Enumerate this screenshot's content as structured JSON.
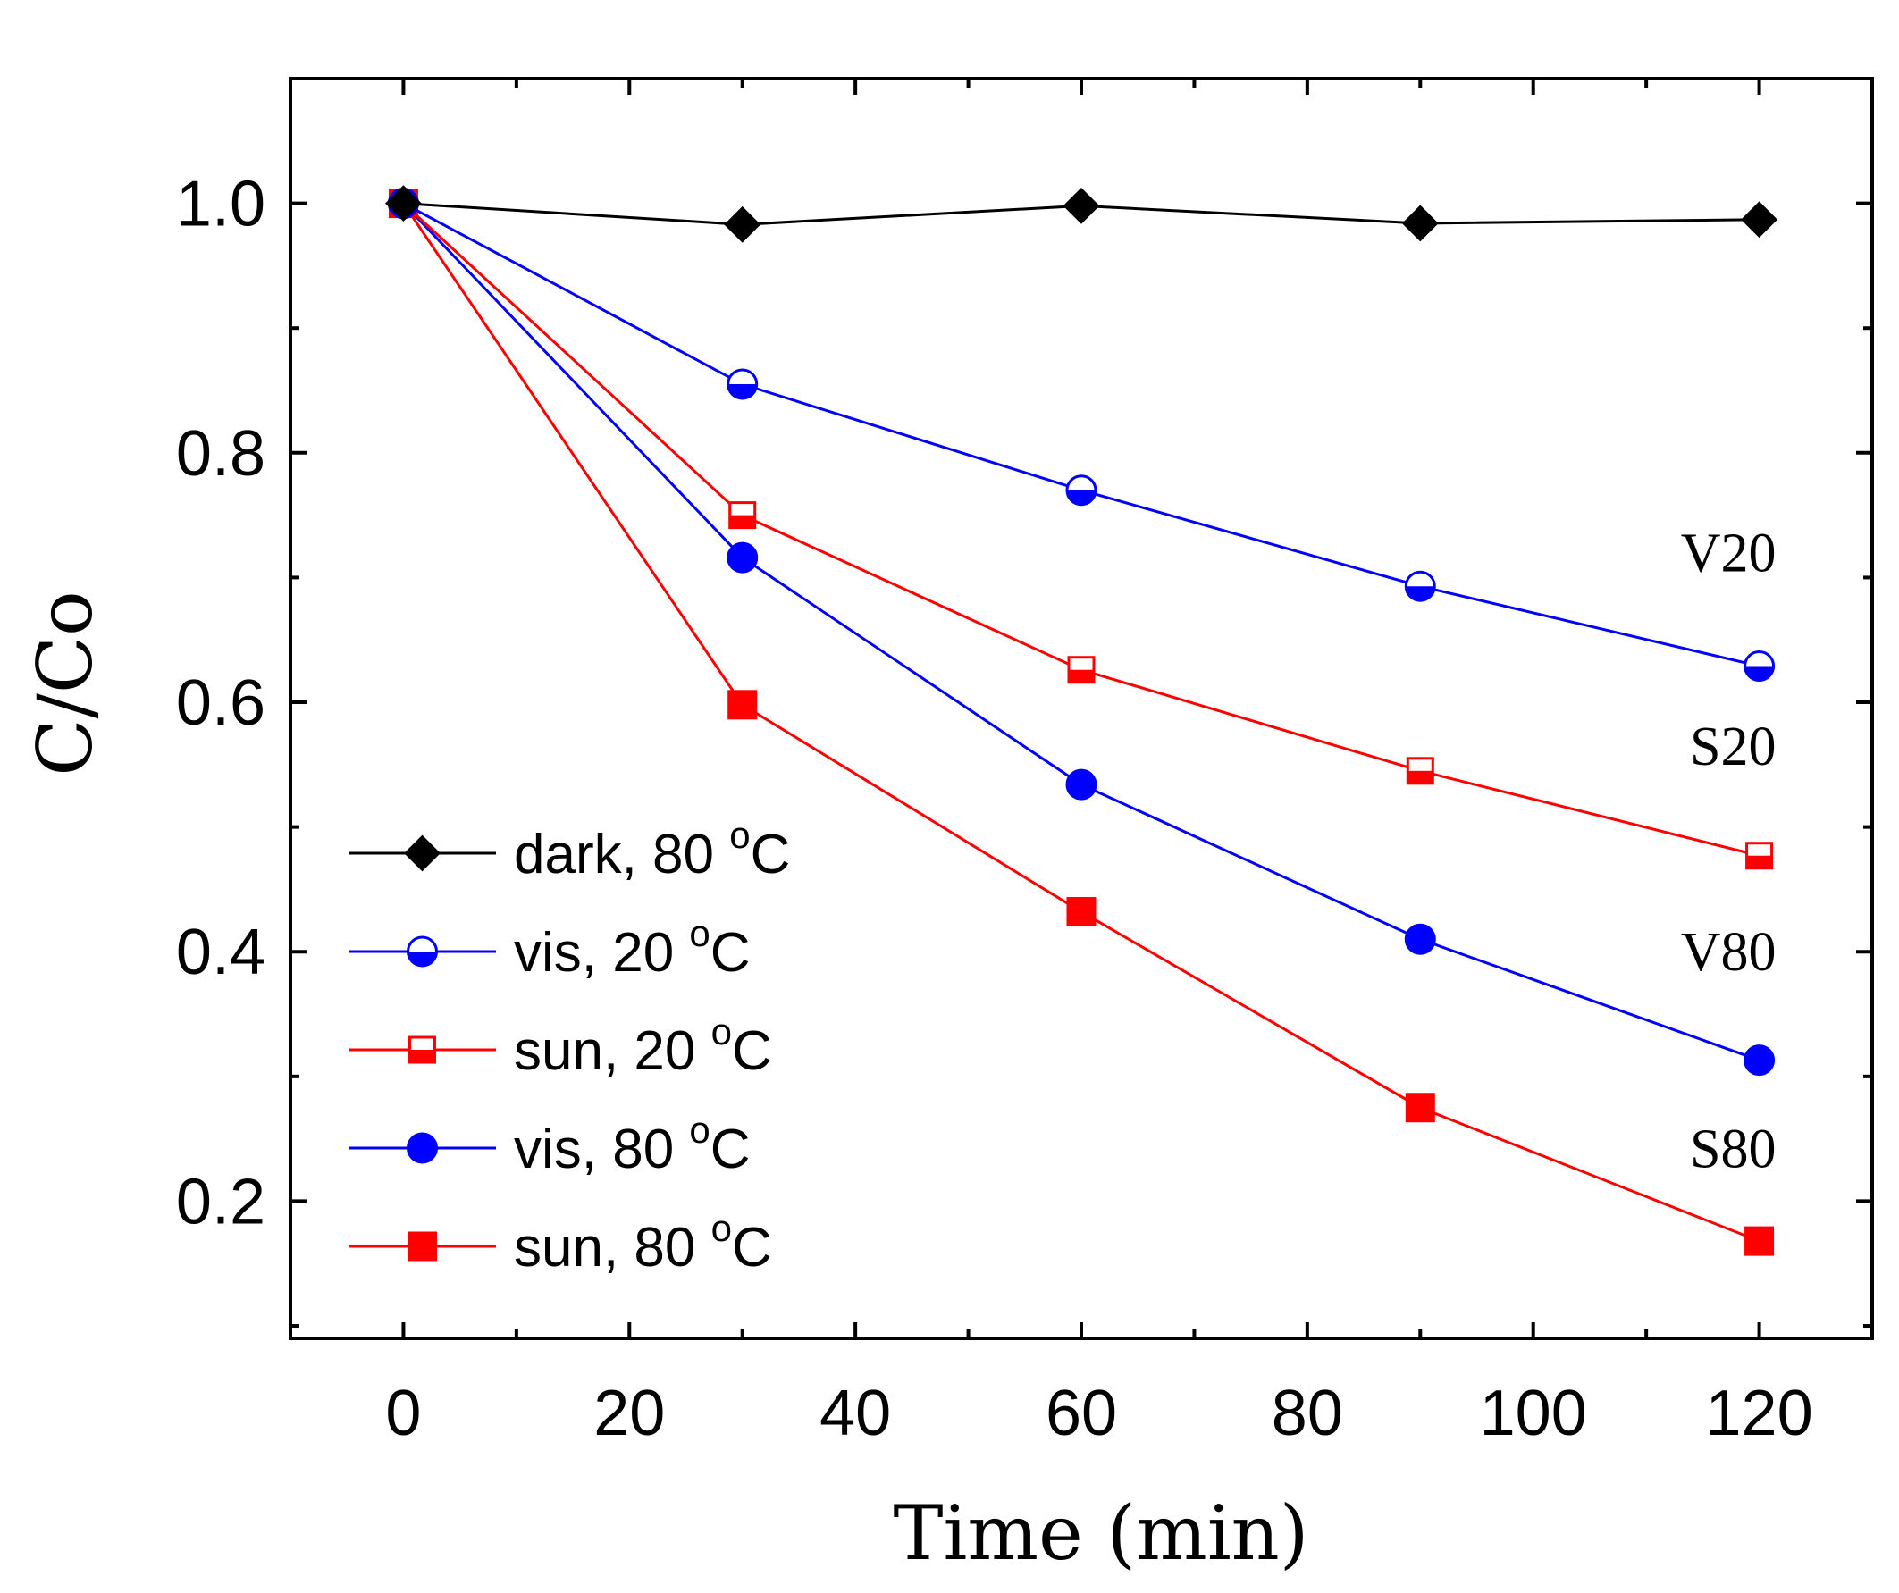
{
  "chart_data": {
    "type": "line",
    "title": "",
    "xlabel": "Time (min)",
    "ylabel": "C/Co",
    "xlim": [
      -10,
      130
    ],
    "ylim": [
      0.09,
      1.1
    ],
    "xticks": [
      0,
      20,
      40,
      60,
      80,
      100,
      120
    ],
    "xtick_labels": [
      "0",
      "20",
      "40",
      "60",
      "80",
      "100",
      "120"
    ],
    "yticks": [
      0.2,
      0.4,
      0.6,
      0.8,
      1.0
    ],
    "ytick_labels": [
      "0.2",
      "0.4",
      "0.6",
      "0.8",
      "1.0"
    ],
    "grid": false,
    "legend_position": "lower-left",
    "x": [
      0,
      30,
      60,
      90,
      120
    ],
    "series": [
      {
        "id": "dark80",
        "name": "dark, 80",
        "unit": "o",
        "unit_suffix": "C",
        "color": "#000000",
        "marker": "diamond",
        "values": [
          1.0,
          0.983,
          0.998,
          0.984,
          0.987
        ]
      },
      {
        "id": "vis20",
        "name": "vis,   20",
        "unit": "o",
        "unit_suffix": "C",
        "color": "#0000ff",
        "marker": "circle-half",
        "values": [
          1.0,
          0.855,
          0.77,
          0.693,
          0.629
        ]
      },
      {
        "id": "sun20",
        "name": "sun,  20",
        "unit": "o",
        "unit_suffix": "C",
        "color": "#ff0000",
        "marker": "square-half",
        "values": [
          1.0,
          0.75,
          0.626,
          0.545,
          0.477
        ]
      },
      {
        "id": "vis80",
        "name": "vis,   80",
        "unit": "o",
        "unit_suffix": "C",
        "color": "#0000ff",
        "marker": "circle",
        "values": [
          1.0,
          0.716,
          0.534,
          0.41,
          0.313
        ]
      },
      {
        "id": "sun80",
        "name": "sun,  80",
        "unit": "o",
        "unit_suffix": "C",
        "color": "#ff0000",
        "marker": "square",
        "values": [
          1.0,
          0.598,
          0.432,
          0.275,
          0.168
        ]
      }
    ],
    "annotations": [
      {
        "text": "V20",
        "x": 121.5,
        "y": 0.705
      },
      {
        "text": "S20",
        "x": 121.5,
        "y": 0.55
      },
      {
        "text": "V80",
        "x": 121.5,
        "y": 0.385
      },
      {
        "text": "S80",
        "x": 121.5,
        "y": 0.227
      }
    ]
  }
}
